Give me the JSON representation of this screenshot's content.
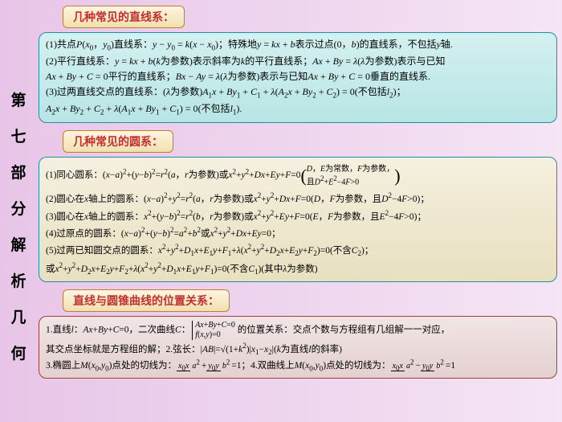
{
  "sidebar": [
    "第",
    "七",
    "部",
    "分",
    "解",
    "析",
    "几",
    "何"
  ],
  "headers": {
    "h1": "几种常见的直线系：",
    "h2": "几种常见的圆系：",
    "h3": "直线与圆锥曲线的位置关系："
  },
  "box1": {
    "l1a": "(1)共点",
    "l1b": "直线系：",
    "l1c": "特殊地",
    "l1d": "表示过点(0，",
    "l1e": ")的直线系，不包括",
    "l1f": "轴.",
    "l2a": "(2)平行直线系：",
    "l2b": "为参数)表示斜率为",
    "l2c": "的平行直线系；",
    "l2d": "为参数)表示与已知",
    "l3a": "平行的直线系；",
    "l3b": "为参数)表示与已知",
    "l3c": "垂直的直线系.",
    "l4a": "(3)过两直线交点的直线系：(",
    "l4b": "为参数)",
    "l4c": "(不包括",
    "l5a": "(不包括"
  },
  "box2": {
    "l1a": "(1)同心圆系：",
    "l1b": "为参数)或",
    "l1c": "为常数，",
    "l1d": "为参数，",
    "l1e": "且",
    "l2a": "(2)圆心在",
    "l2b": "轴上的圆系：",
    "l2c": "为参数)或",
    "l2d": "为参数，且",
    "l3a": "(3)圆心在",
    "l3b": "轴上的圆系：",
    "l3c": "为参数)或",
    "l3d": "为参数，且",
    "l4a": "(4)过原点的圆系：",
    "l4b": "或",
    "l5a": "(5)过两已知圆交点的圆系：",
    "l5b": "(不含",
    "l6a": "或",
    "l6b": "(不含",
    "l6c": ")(其中",
    "l6d": "为参数)"
  },
  "box3": {
    "l1a": "1.直线",
    "l1b": "，二次曲线",
    "l1c": "的位置关系：交点个数与方程组有几组解一一对应，",
    "l2a": "其交点坐标就是方程组的解；2.弦长：",
    "l2b": "为直线",
    "l2c": "的斜率)",
    "l3a": "3.椭圆上",
    "l3b": "点处的切线为：",
    "l3c": "4.双曲线上",
    "l3d": "点处的切线为："
  },
  "colors": {
    "bg1": "#e8c5e8",
    "bg2": "#f5e5f5",
    "hdr_bg": "#f0e0b0",
    "hdr_border": "#c08030",
    "hdr_text": "#c03030",
    "box_border": "#2090a0",
    "box1_bg": "#b8e5e5",
    "box2_bg": "#e8e0c0",
    "box3_border": "#a04040",
    "box3_bg": "#e5d0d0"
  }
}
